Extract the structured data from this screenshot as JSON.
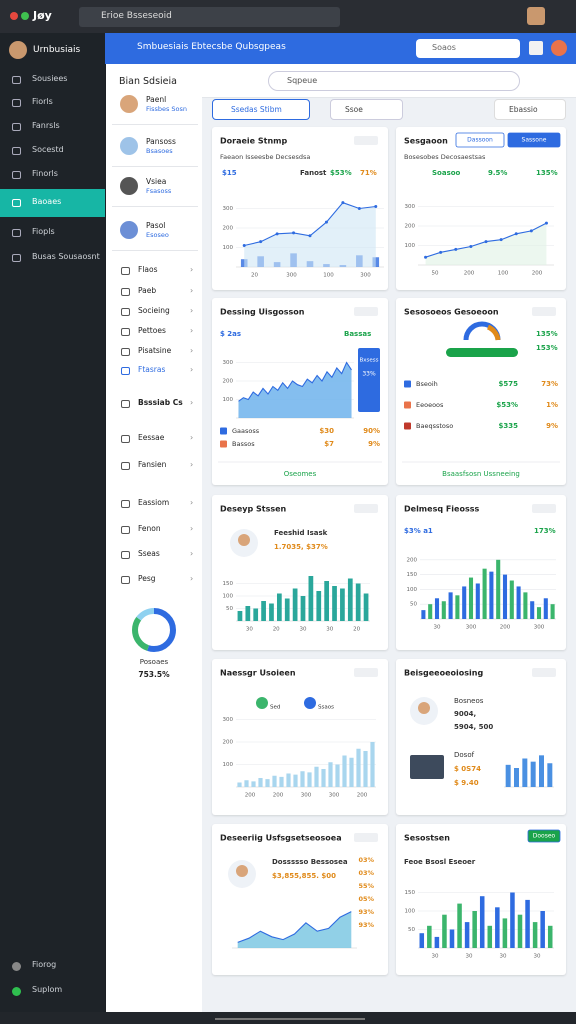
{
  "topbar": {
    "app": "Jøy",
    "search": "Erioe Bsseseoid"
  },
  "sidebar": {
    "user": "Urnbusiais",
    "items": [
      "Sousiees",
      "Fiorls",
      "Fanrsls",
      "Socestd",
      "Finorls",
      "Baoaes",
      "Fiopls",
      "Busas Sousaosnt"
    ],
    "active": 5,
    "footer": [
      "Fiorog",
      "Suplom"
    ]
  },
  "header": {
    "title": "Smbuesiais Ebtecsbe Qubsgpeas",
    "search": "Soaos"
  },
  "panel": {
    "title": "Bian Sdsieia",
    "contacts": [
      {
        "name": "Paenl",
        "sub": "Fissbes Sosn"
      },
      {
        "name": "Pansoss",
        "sub": "Bsasoes"
      },
      {
        "name": "Vsiea",
        "sub": "Fsasoss"
      },
      {
        "name": "Pasol",
        "sub": "Esoseo"
      }
    ],
    "menu": [
      "Flaos",
      "Paeb",
      "Socieing",
      "Pettoes",
      "Pisatsine",
      "Ftasras",
      "Bsssiab Cs",
      "Eessae",
      "Fansien",
      "Eassiom",
      "Fenon",
      "Sseas",
      "Pesg"
    ],
    "active": 5,
    "donut": {
      "label": "Posoaes",
      "value": "753.5%"
    }
  },
  "toolbar": {
    "search": "Sqpeue",
    "tabs": [
      "Ssedas Stibm",
      "Ssoe"
    ],
    "dropdown": "Ebassio"
  },
  "cards": [
    {
      "title": "Doraeie Stnmp",
      "subtitle": "Faeaon Isseesbe Decsesdsa",
      "kpis": [
        {
          "text": "$15",
          "color": "#2e6be0"
        },
        {
          "text": "Fanost",
          "color": "#333333"
        },
        {
          "text": "$53%",
          "color": "#1aa34a"
        },
        {
          "text": "71%",
          "color": "#e08a1a"
        }
      ],
      "chart": {
        "type": "line",
        "values": [
          110,
          130,
          170,
          175,
          160,
          230,
          330,
          300,
          310
        ],
        "color": "#2e6be0",
        "fill": "#cfe6f5",
        "bars": [
          40,
          55,
          25,
          70,
          30,
          15,
          10,
          60,
          50
        ],
        "bar_color": "#2e6be0",
        "ylim": [
          0,
          400
        ],
        "yticks": [
          100,
          200,
          300
        ],
        "xlabels": [
          "20",
          "300",
          "100",
          "300"
        ]
      }
    },
    {
      "title": "Sesgaoon",
      "buttons": [
        "Dassoon",
        "Sassone"
      ],
      "subtitle": "Bosesobes Decosaestsas",
      "kpis": [
        {
          "text": "Soasoo",
          "color": "#1aa34a"
        },
        {
          "text": "9.5%",
          "color": "#1aa34a"
        },
        {
          "text": "135%",
          "color": "#1aa34a"
        }
      ],
      "chart": {
        "type": "line",
        "values": [
          40,
          65,
          80,
          95,
          120,
          130,
          160,
          175,
          215
        ],
        "color": "#2e6be0",
        "fill": "#dff1e4",
        "ylim": [
          0,
          400
        ],
        "yticks": [
          100,
          200,
          300
        ],
        "xlabels": [
          "50",
          "200",
          "100",
          "200"
        ]
      }
    },
    {
      "title": "Dessing Uisgosson",
      "kpis": [
        {
          "text": "$ 2as",
          "color": "#2e6be0"
        },
        {
          "text": "Bassas",
          "color": "#1aa34a"
        }
      ],
      "chart": {
        "type": "area",
        "values": [
          90,
          110,
          100,
          140,
          120,
          160,
          130,
          170,
          150,
          190,
          160,
          200,
          180,
          170,
          210,
          190,
          230,
          200,
          250,
          220,
          270,
          240,
          300,
          260
        ],
        "color": "#2e6be0",
        "fill": "#6fb3ec",
        "ylim": [
          0,
          400
        ],
        "yticks": [
          100,
          200,
          300
        ]
      },
      "badge": {
        "title": "Bxsess",
        "value": "33%"
      },
      "rows": [
        [
          "Gaasoss",
          "$30",
          "90%"
        ],
        [
          "Bassos",
          "$7",
          "9%"
        ]
      ],
      "footer": "Oseomes"
    },
    {
      "title": "Sesosoeos Gesoeoon",
      "kpis": [
        {
          "text": "135%",
          "color": "#1aa34a"
        },
        {
          "text": "153%",
          "color": "#1aa34a"
        }
      ],
      "rows": [
        [
          "Bseoih",
          "$575",
          "73%"
        ],
        [
          "Eeoeoos",
          "$53%",
          "1%"
        ],
        [
          "Baeqsstoso",
          "$335",
          "9%"
        ]
      ],
      "footer": "Bsaasfsosn Ussneeing"
    },
    {
      "title": "Deseyp Stssen",
      "kpis": [
        {
          "text": "Feeshid Isask",
          "color": "#333333"
        },
        {
          "text": "1.7035, $37%",
          "color": "#e08a1a"
        }
      ],
      "chart": {
        "type": "bar",
        "values": [
          40,
          60,
          50,
          80,
          70,
          110,
          90,
          130,
          100,
          180,
          120,
          160,
          140,
          130,
          170,
          150,
          110
        ],
        "colors": [
          "#2aa79b"
        ],
        "ylim": [
          0,
          200
        ],
        "yticks": [
          50,
          100,
          150
        ],
        "xlabels": [
          "30",
          "20",
          "30",
          "30",
          "20"
        ]
      }
    },
    {
      "title": "Delmesq Fieosss",
      "kpis": [
        {
          "text": "$3% a1",
          "color": "#2e6be0"
        },
        {
          "text": "173%",
          "color": "#1aa34a"
        }
      ],
      "chart": {
        "type": "bar",
        "values": [
          30,
          50,
          70,
          60,
          90,
          80,
          110,
          140,
          120,
          170,
          160,
          200,
          150,
          130,
          110,
          90,
          60,
          40,
          70,
          50
        ],
        "colors": [
          "#2e6be0",
          "#3bb56c"
        ],
        "ylim": [
          0,
          250
        ],
        "yticks": [
          50,
          100,
          150,
          200
        ],
        "xlabels": [
          "30",
          "300",
          "200",
          "300"
        ]
      }
    },
    {
      "title": "Naessgr Usoieen",
      "tags": [
        "Sed",
        "Ssaos"
      ],
      "chart": {
        "type": "bar",
        "values": [
          20,
          30,
          25,
          40,
          35,
          50,
          45,
          60,
          55,
          70,
          65,
          90,
          80,
          110,
          100,
          140,
          130,
          170,
          160,
          200
        ],
        "colors": [
          "#a9d6ee"
        ],
        "ylim": [
          0,
          400
        ],
        "yticks": [
          100,
          200,
          300
        ],
        "xlabels": [
          "200",
          "200",
          "300",
          "300",
          "200"
        ]
      }
    },
    {
      "title": "Beisgeeoeoiosing",
      "lines": [
        {
          "text": "Bosneos",
          "color": "#333333"
        },
        {
          "text": "9004,",
          "color": "#333333"
        },
        {
          "text": "5904, 500",
          "color": "#333333"
        },
        {
          "text": "Dosof",
          "color": "#333333"
        },
        {
          "text": "$ 0S74",
          "color": "#e08a1a"
        },
        {
          "text": "$ 9.40",
          "color": "#e08a1a"
        }
      ],
      "chart": {
        "type": "bar",
        "values": [
          70,
          60,
          90,
          80,
          100,
          75
        ],
        "colors": [
          "#4a90e2"
        ],
        "ylim": [
          0,
          120
        ]
      }
    },
    {
      "title": "Deseeriig Usfsgsetseosoea",
      "kpis": [
        {
          "text": "Dossssso Bessosea",
          "color": "#333333"
        },
        {
          "text": "$3,855,855. $00",
          "color": "#e08a1a"
        }
      ],
      "side": [
        "03%",
        "03%",
        "55%",
        "05%",
        "93%",
        "93%"
      ],
      "chart": {
        "type": "area",
        "values": [
          20,
          35,
          60,
          40,
          30,
          50,
          90,
          60,
          70,
          110,
          130
        ],
        "color": "#2e6be0",
        "fill": "#7ec8e3",
        "ylim": [
          0,
          150
        ]
      }
    },
    {
      "title": "Sesostsen",
      "buttons": [
        "Dooseo"
      ],
      "kpis": [
        {
          "text": "Feoe Bsosl Eseoer",
          "color": "#333333"
        }
      ],
      "chart": {
        "type": "bar",
        "values": [
          40,
          60,
          30,
          90,
          50,
          120,
          70,
          100,
          140,
          60,
          110,
          80,
          150,
          90,
          130,
          70,
          100,
          60
        ],
        "colors": [
          "#2e6be0",
          "#3bb56c"
        ],
        "ylim": [
          0,
          200
        ],
        "yticks": [
          50,
          100,
          150
        ],
        "xlabels": [
          "30",
          "30",
          "30",
          "30"
        ]
      }
    }
  ]
}
